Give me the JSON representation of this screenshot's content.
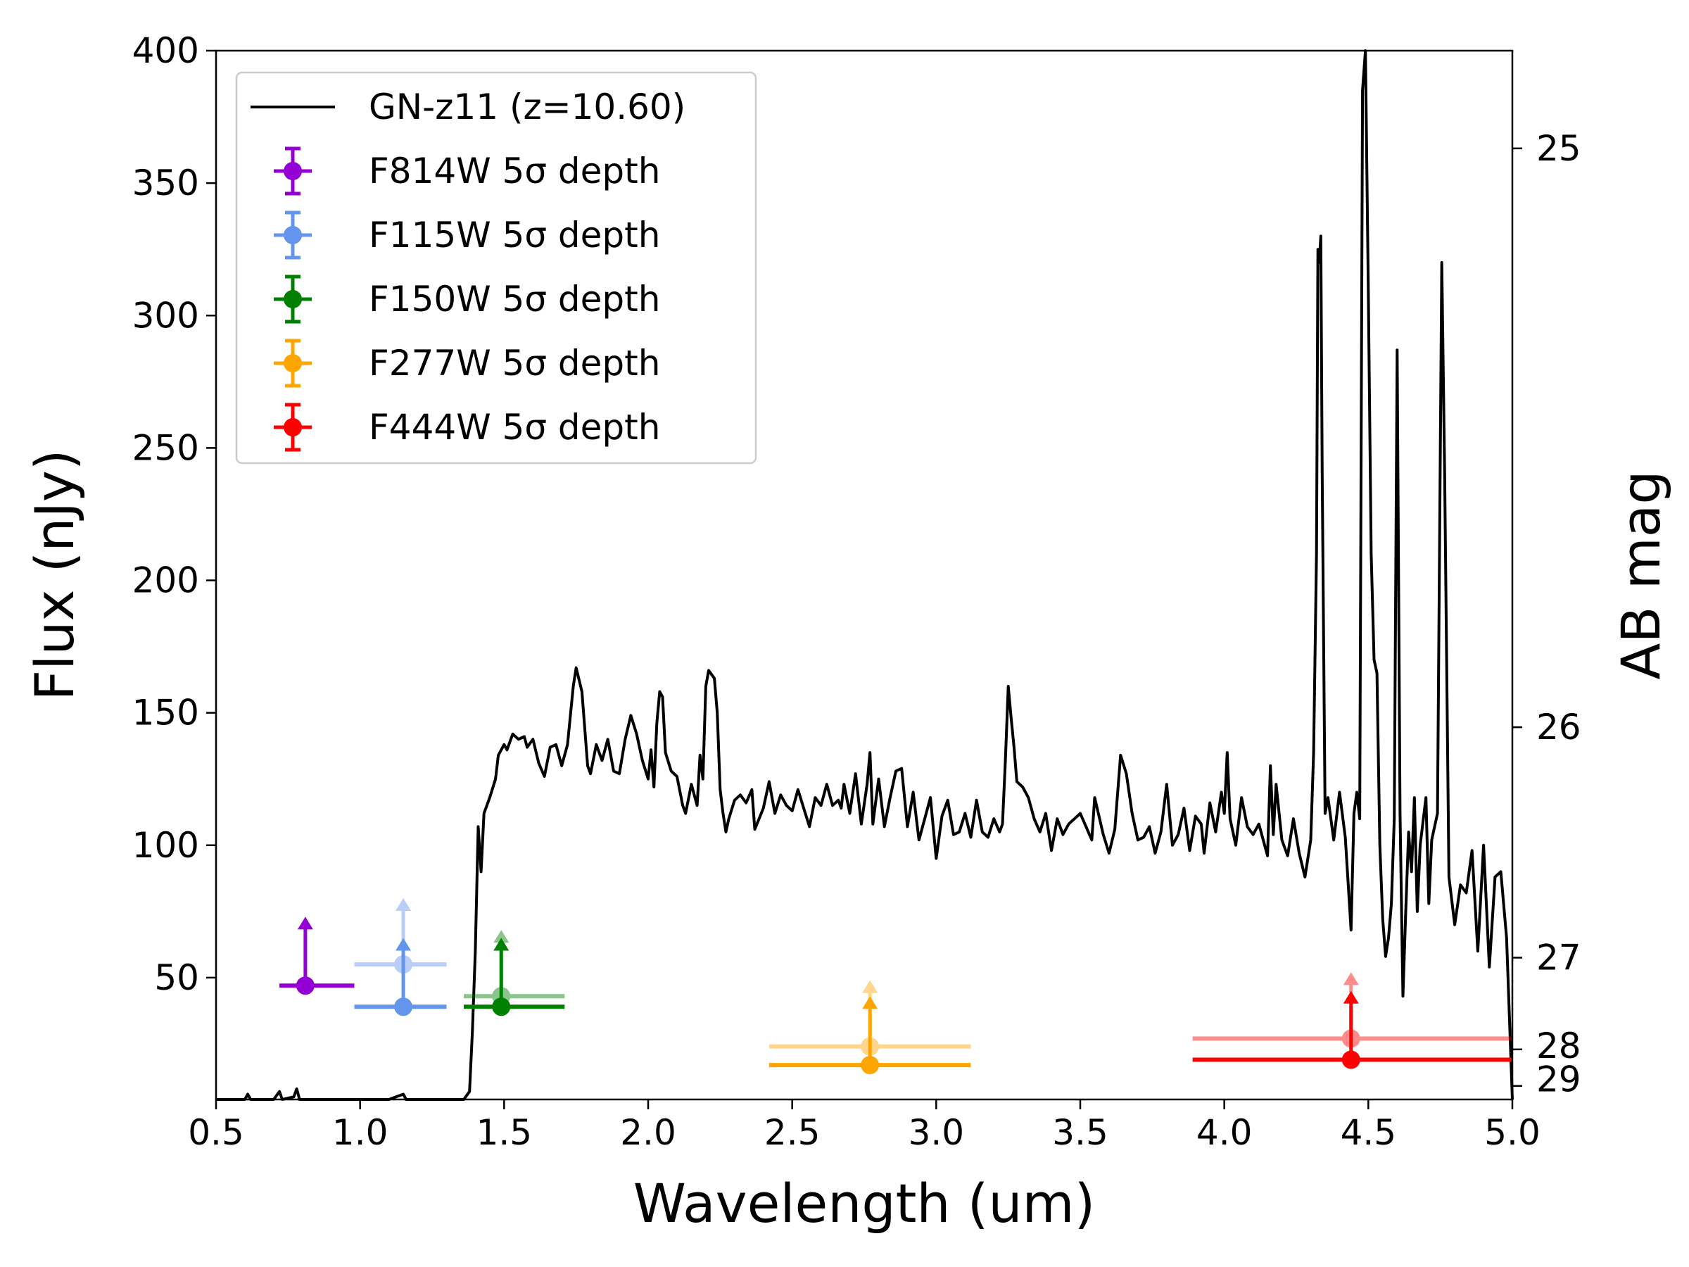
{
  "chart_data": {
    "type": "line",
    "title": "",
    "xlabel": "Wavelength (um)",
    "ylabel": "Flux (nJy)",
    "y2label": "AB mag",
    "xlim": [
      0.5,
      5.0
    ],
    "ylim": [
      4,
      400
    ],
    "x_ticks": [
      "0.5",
      "1.0",
      "1.5",
      "2.0",
      "2.5",
      "3.0",
      "3.5",
      "4.0",
      "4.5",
      "5.0"
    ],
    "y_ticks": [
      "50",
      "100",
      "150",
      "200",
      "250",
      "300",
      "350",
      "400"
    ],
    "y2_ticks": [
      "25",
      "26",
      "27",
      "28",
      "29"
    ],
    "legend_position": "top-left",
    "legend": [
      {
        "label": "GN-z11 (z=10.60)",
        "color": "#000000",
        "kind": "line"
      },
      {
        "label": "F814W 5σ depth",
        "color": "#9400d3",
        "kind": "errorbar"
      },
      {
        "label": "F115W 5σ depth",
        "color": "#6495ed",
        "kind": "errorbar"
      },
      {
        "label": "F150W 5σ depth",
        "color": "#008000",
        "kind": "errorbar"
      },
      {
        "label": "F277W 5σ depth",
        "color": "#ffa500",
        "kind": "errorbar"
      },
      {
        "label": "F444W 5σ depth",
        "color": "#ff0000",
        "kind": "errorbar"
      }
    ],
    "spectrum": {
      "name": "GN-z11 (z=10.60)",
      "color": "#000000",
      "points": [
        [
          0.5,
          4
        ],
        [
          0.6,
          4
        ],
        [
          0.61,
          6
        ],
        [
          0.62,
          4
        ],
        [
          0.7,
          4
        ],
        [
          0.72,
          7
        ],
        [
          0.73,
          4
        ],
        [
          0.77,
          5
        ],
        [
          0.78,
          8
        ],
        [
          0.79,
          4
        ],
        [
          0.9,
          4
        ],
        [
          1.0,
          4
        ],
        [
          1.1,
          4
        ],
        [
          1.15,
          6
        ],
        [
          1.16,
          4
        ],
        [
          1.3,
          4
        ],
        [
          1.36,
          4
        ],
        [
          1.38,
          7
        ],
        [
          1.39,
          30
        ],
        [
          1.4,
          60
        ],
        [
          1.41,
          107
        ],
        [
          1.42,
          90
        ],
        [
          1.43,
          112
        ],
        [
          1.45,
          118
        ],
        [
          1.47,
          125
        ],
        [
          1.48,
          134
        ],
        [
          1.5,
          138
        ],
        [
          1.51,
          136
        ],
        [
          1.53,
          142
        ],
        [
          1.55,
          140
        ],
        [
          1.57,
          141
        ],
        [
          1.58,
          137
        ],
        [
          1.6,
          140
        ],
        [
          1.62,
          131
        ],
        [
          1.64,
          126
        ],
        [
          1.66,
          137
        ],
        [
          1.68,
          138
        ],
        [
          1.7,
          130
        ],
        [
          1.72,
          138
        ],
        [
          1.74,
          160
        ],
        [
          1.75,
          167
        ],
        [
          1.77,
          158
        ],
        [
          1.79,
          130
        ],
        [
          1.8,
          127
        ],
        [
          1.82,
          138
        ],
        [
          1.84,
          132
        ],
        [
          1.86,
          140
        ],
        [
          1.88,
          128
        ],
        [
          1.9,
          127
        ],
        [
          1.92,
          140
        ],
        [
          1.94,
          149
        ],
        [
          1.96,
          142
        ],
        [
          1.98,
          132
        ],
        [
          2.0,
          125
        ],
        [
          2.01,
          136
        ],
        [
          2.02,
          122
        ],
        [
          2.03,
          146
        ],
        [
          2.04,
          158
        ],
        [
          2.05,
          156
        ],
        [
          2.06,
          135
        ],
        [
          2.08,
          128
        ],
        [
          2.1,
          126
        ],
        [
          2.12,
          115
        ],
        [
          2.13,
          112
        ],
        [
          2.15,
          123
        ],
        [
          2.17,
          115
        ],
        [
          2.18,
          134
        ],
        [
          2.19,
          125
        ],
        [
          2.2,
          160
        ],
        [
          2.21,
          166
        ],
        [
          2.23,
          163
        ],
        [
          2.24,
          150
        ],
        [
          2.25,
          121
        ],
        [
          2.26,
          112
        ],
        [
          2.27,
          105
        ],
        [
          2.28,
          110
        ],
        [
          2.3,
          117
        ],
        [
          2.32,
          119
        ],
        [
          2.34,
          116
        ],
        [
          2.36,
          121
        ],
        [
          2.37,
          106
        ],
        [
          2.4,
          114
        ],
        [
          2.42,
          124
        ],
        [
          2.44,
          112
        ],
        [
          2.46,
          119
        ],
        [
          2.48,
          115
        ],
        [
          2.5,
          113
        ],
        [
          2.52,
          121
        ],
        [
          2.54,
          114
        ],
        [
          2.56,
          107
        ],
        [
          2.58,
          118
        ],
        [
          2.6,
          115
        ],
        [
          2.62,
          123
        ],
        [
          2.64,
          115
        ],
        [
          2.66,
          117
        ],
        [
          2.67,
          114
        ],
        [
          2.68,
          123
        ],
        [
          2.7,
          112
        ],
        [
          2.72,
          127
        ],
        [
          2.74,
          108
        ],
        [
          2.76,
          123
        ],
        [
          2.77,
          135
        ],
        [
          2.78,
          108
        ],
        [
          2.8,
          125
        ],
        [
          2.82,
          107
        ],
        [
          2.84,
          118
        ],
        [
          2.86,
          128
        ],
        [
          2.88,
          129
        ],
        [
          2.9,
          107
        ],
        [
          2.92,
          120
        ],
        [
          2.94,
          102
        ],
        [
          2.96,
          110
        ],
        [
          2.98,
          118
        ],
        [
          3.0,
          95
        ],
        [
          3.02,
          111
        ],
        [
          3.04,
          117
        ],
        [
          3.06,
          104
        ],
        [
          3.08,
          105
        ],
        [
          3.1,
          112
        ],
        [
          3.12,
          103
        ],
        [
          3.14,
          117
        ],
        [
          3.16,
          105
        ],
        [
          3.18,
          103
        ],
        [
          3.2,
          110
        ],
        [
          3.22,
          105
        ],
        [
          3.23,
          108
        ],
        [
          3.24,
          132
        ],
        [
          3.25,
          160
        ],
        [
          3.26,
          148
        ],
        [
          3.27,
          137
        ],
        [
          3.28,
          124
        ],
        [
          3.3,
          122
        ],
        [
          3.32,
          118
        ],
        [
          3.34,
          110
        ],
        [
          3.36,
          105
        ],
        [
          3.38,
          112
        ],
        [
          3.4,
          98
        ],
        [
          3.42,
          110
        ],
        [
          3.44,
          104
        ],
        [
          3.46,
          108
        ],
        [
          3.48,
          110
        ],
        [
          3.5,
          112
        ],
        [
          3.52,
          107
        ],
        [
          3.54,
          102
        ],
        [
          3.55,
          118
        ],
        [
          3.58,
          104
        ],
        [
          3.6,
          97
        ],
        [
          3.62,
          106
        ],
        [
          3.64,
          134
        ],
        [
          3.66,
          127
        ],
        [
          3.68,
          112
        ],
        [
          3.7,
          102
        ],
        [
          3.72,
          103
        ],
        [
          3.74,
          107
        ],
        [
          3.76,
          97
        ],
        [
          3.78,
          105
        ],
        [
          3.8,
          123
        ],
        [
          3.82,
          100
        ],
        [
          3.84,
          104
        ],
        [
          3.86,
          114
        ],
        [
          3.88,
          98
        ],
        [
          3.9,
          111
        ],
        [
          3.92,
          108
        ],
        [
          3.93,
          97
        ],
        [
          3.95,
          116
        ],
        [
          3.97,
          105
        ],
        [
          3.99,
          120
        ],
        [
          4.0,
          112
        ],
        [
          4.01,
          135
        ],
        [
          4.02,
          110
        ],
        [
          4.04,
          100
        ],
        [
          4.06,
          118
        ],
        [
          4.08,
          107
        ],
        [
          4.1,
          104
        ],
        [
          4.12,
          108
        ],
        [
          4.14,
          100
        ],
        [
          4.15,
          96
        ],
        [
          4.16,
          130
        ],
        [
          4.17,
          104
        ],
        [
          4.18,
          123
        ],
        [
          4.2,
          102
        ],
        [
          4.22,
          96
        ],
        [
          4.24,
          110
        ],
        [
          4.26,
          97
        ],
        [
          4.28,
          88
        ],
        [
          4.3,
          102
        ],
        [
          4.31,
          135
        ],
        [
          4.32,
          210
        ],
        [
          4.325,
          325
        ],
        [
          4.33,
          320
        ],
        [
          4.335,
          330
        ],
        [
          4.34,
          240
        ],
        [
          4.35,
          112
        ],
        [
          4.36,
          118
        ],
        [
          4.38,
          102
        ],
        [
          4.4,
          120
        ],
        [
          4.42,
          103
        ],
        [
          4.44,
          68
        ],
        [
          4.45,
          112
        ],
        [
          4.46,
          120
        ],
        [
          4.47,
          110
        ],
        [
          4.48,
          385
        ],
        [
          4.49,
          400
        ],
        [
          4.5,
          310
        ],
        [
          4.51,
          210
        ],
        [
          4.52,
          170
        ],
        [
          4.53,
          165
        ],
        [
          4.54,
          100
        ],
        [
          4.55,
          72
        ],
        [
          4.56,
          58
        ],
        [
          4.57,
          65
        ],
        [
          4.58,
          78
        ],
        [
          4.59,
          110
        ],
        [
          4.6,
          287
        ],
        [
          4.61,
          112
        ],
        [
          4.62,
          43
        ],
        [
          4.63,
          75
        ],
        [
          4.64,
          105
        ],
        [
          4.65,
          90
        ],
        [
          4.66,
          118
        ],
        [
          4.67,
          75
        ],
        [
          4.68,
          100
        ],
        [
          4.7,
          118
        ],
        [
          4.71,
          78
        ],
        [
          4.72,
          102
        ],
        [
          4.74,
          112
        ],
        [
          4.755,
          320
        ],
        [
          4.765,
          240
        ],
        [
          4.78,
          88
        ],
        [
          4.8,
          70
        ],
        [
          4.82,
          85
        ],
        [
          4.84,
          82
        ],
        [
          4.86,
          98
        ],
        [
          4.88,
          60
        ],
        [
          4.9,
          100
        ],
        [
          4.92,
          54
        ],
        [
          4.94,
          88
        ],
        [
          4.96,
          90
        ],
        [
          4.98,
          65
        ],
        [
          5.0,
          4
        ]
      ]
    },
    "depth_points": [
      {
        "filter": "F814W",
        "color": "#9400d3",
        "x": 0.81,
        "y": 47,
        "xerr": [
          0.72,
          0.98
        ],
        "arrow_to": 73,
        "faded": false
      },
      {
        "filter": "F115W",
        "color": "#6495ed",
        "x": 1.15,
        "y": 39,
        "xerr": [
          0.98,
          1.3
        ],
        "arrow_to": 65,
        "faded": false
      },
      {
        "filter": "F115W",
        "color": "#6495ed",
        "x": 1.15,
        "y": 55,
        "xerr": [
          0.98,
          1.3
        ],
        "arrow_to": 80,
        "faded": true
      },
      {
        "filter": "F150W",
        "color": "#008000",
        "x": 1.49,
        "y": 39,
        "xerr": [
          1.36,
          1.71
        ],
        "arrow_to": 65,
        "faded": false
      },
      {
        "filter": "F150W",
        "color": "#008000",
        "x": 1.49,
        "y": 43,
        "xerr": [
          1.36,
          1.71
        ],
        "arrow_to": 68,
        "faded": true
      },
      {
        "filter": "F277W",
        "color": "#ffa500",
        "x": 2.77,
        "y": 17,
        "xerr": [
          2.42,
          3.12
        ],
        "arrow_to": 43,
        "faded": false
      },
      {
        "filter": "F277W",
        "color": "#ffa500",
        "x": 2.77,
        "y": 24,
        "xerr": [
          2.42,
          3.12
        ],
        "arrow_to": 49,
        "faded": true
      },
      {
        "filter": "F444W",
        "color": "#ff0000",
        "x": 4.44,
        "y": 19,
        "xerr": [
          3.89,
          5.0
        ],
        "arrow_to": 45,
        "faded": false
      },
      {
        "filter": "F444W",
        "color": "#ff0000",
        "x": 4.44,
        "y": 27,
        "xerr": [
          3.89,
          5.0
        ],
        "arrow_to": 52,
        "faded": true
      }
    ]
  }
}
